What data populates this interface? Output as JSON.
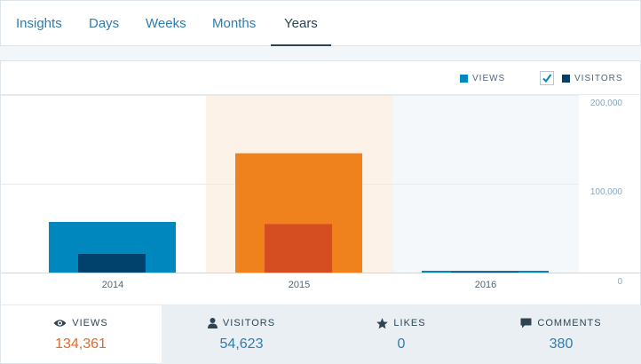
{
  "tabs": {
    "items": [
      {
        "label": "Insights"
      },
      {
        "label": "Days"
      },
      {
        "label": "Weeks"
      },
      {
        "label": "Months"
      },
      {
        "label": "Years"
      }
    ],
    "selected": "Years"
  },
  "legend": {
    "views_label": "VIEWS",
    "visitors_label": "VISITORS",
    "visitors_checked": true
  },
  "chart_data": {
    "type": "bar",
    "categories": [
      "2014",
      "2015",
      "2016"
    ],
    "series": [
      {
        "name": "VIEWS",
        "values": [
          57000,
          134361,
          2000
        ],
        "color": "#0087be"
      },
      {
        "name": "VISITORS",
        "values": [
          21000,
          54623,
          800
        ],
        "color": "#00426c"
      }
    ],
    "highlight_colors": {
      "views": "#f0821e",
      "visitors": "#d54e21",
      "band": "#fdf2e8"
    },
    "highlighted_category": "2015",
    "current_category": "2016",
    "y_ticks": [
      "200,000",
      "100,000",
      "0"
    ],
    "ylim": [
      0,
      200000
    ],
    "grid": true
  },
  "stats": [
    {
      "label": "VIEWS",
      "value": "134,361",
      "icon": "eye-icon",
      "active": true
    },
    {
      "label": "VISITORS",
      "value": "54,623",
      "icon": "person-icon"
    },
    {
      "label": "LIKES",
      "value": "0",
      "icon": "star-icon"
    },
    {
      "label": "COMMENTS",
      "value": "380",
      "icon": "comment-icon"
    }
  ]
}
